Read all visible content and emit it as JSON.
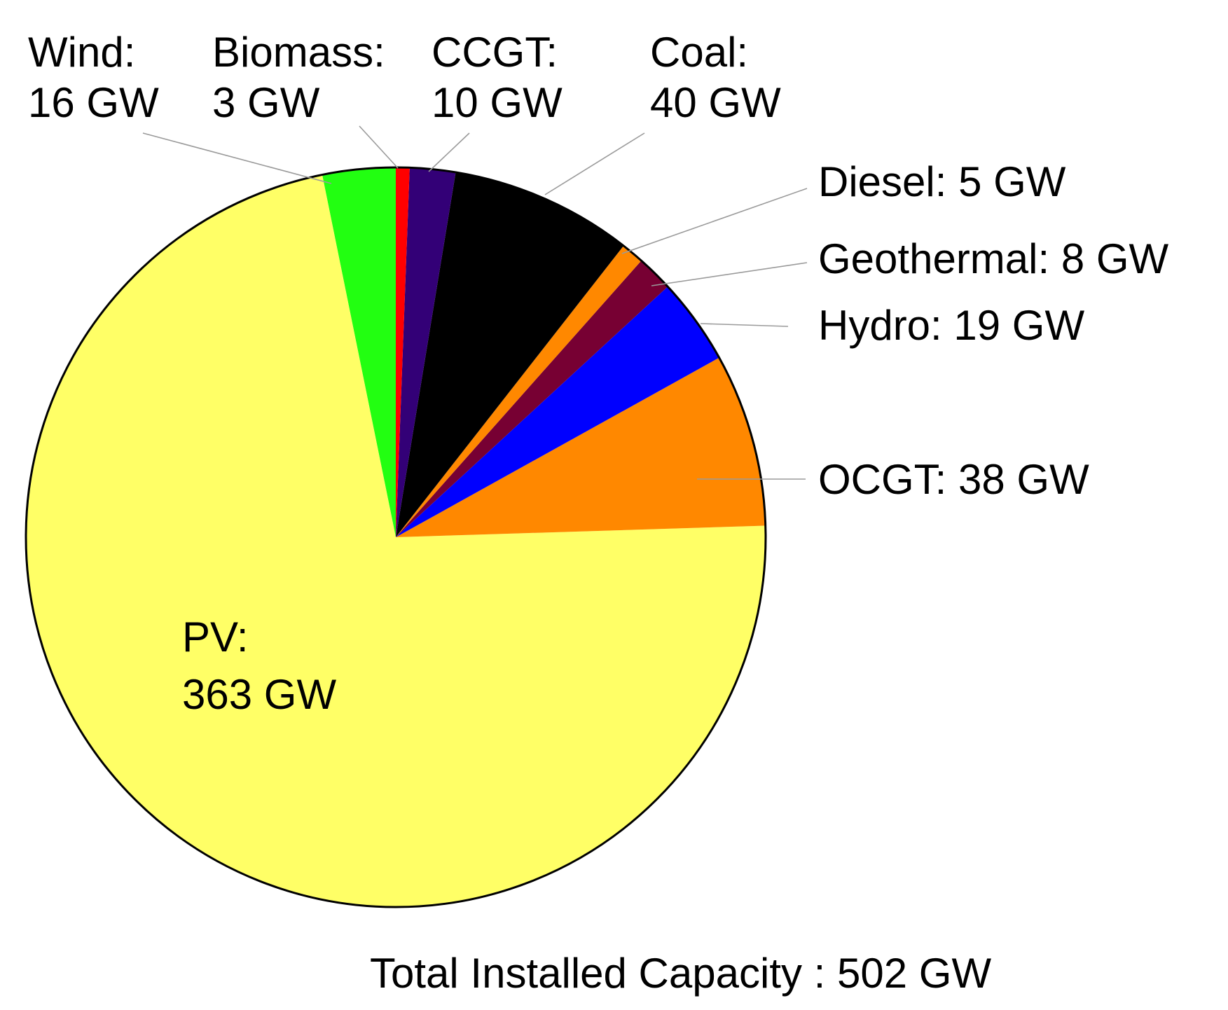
{
  "chart_data": {
    "type": "pie",
    "unit": "GW",
    "total_label": "Total Installed Capacity : 502 GW",
    "slices": [
      {
        "id": "wind",
        "name": "Wind:",
        "value": 16,
        "value_label": "16 GW",
        "color": "#22ff11"
      },
      {
        "id": "pv",
        "name": "PV:",
        "value": 363,
        "value_label": "363 GW",
        "color": "#ffff66"
      },
      {
        "id": "ocgt",
        "name": "OCGT:",
        "value": 38,
        "value_label": "38 GW",
        "color": "#ff8800"
      },
      {
        "id": "hydro",
        "name": "Hydro:",
        "value": 19,
        "value_label": "19 GW",
        "color": "#0000ff"
      },
      {
        "id": "geothermal",
        "name": "Geothermal:",
        "value": 8,
        "value_label": "8 GW",
        "color": "#770033"
      },
      {
        "id": "diesel",
        "name": "Diesel:",
        "value": 5,
        "value_label": "5 GW",
        "color": "#ff8800"
      },
      {
        "id": "coal",
        "name": "Coal:",
        "value": 40,
        "value_label": "40 GW",
        "color": "#000000"
      },
      {
        "id": "ccgt",
        "name": "CCGT:",
        "value": 10,
        "value_label": "10 GW",
        "color": "#330077"
      },
      {
        "id": "biomass",
        "name": "Biomass:",
        "value": 3,
        "value_label": "3 GW",
        "color": "#ff0000"
      }
    ]
  }
}
